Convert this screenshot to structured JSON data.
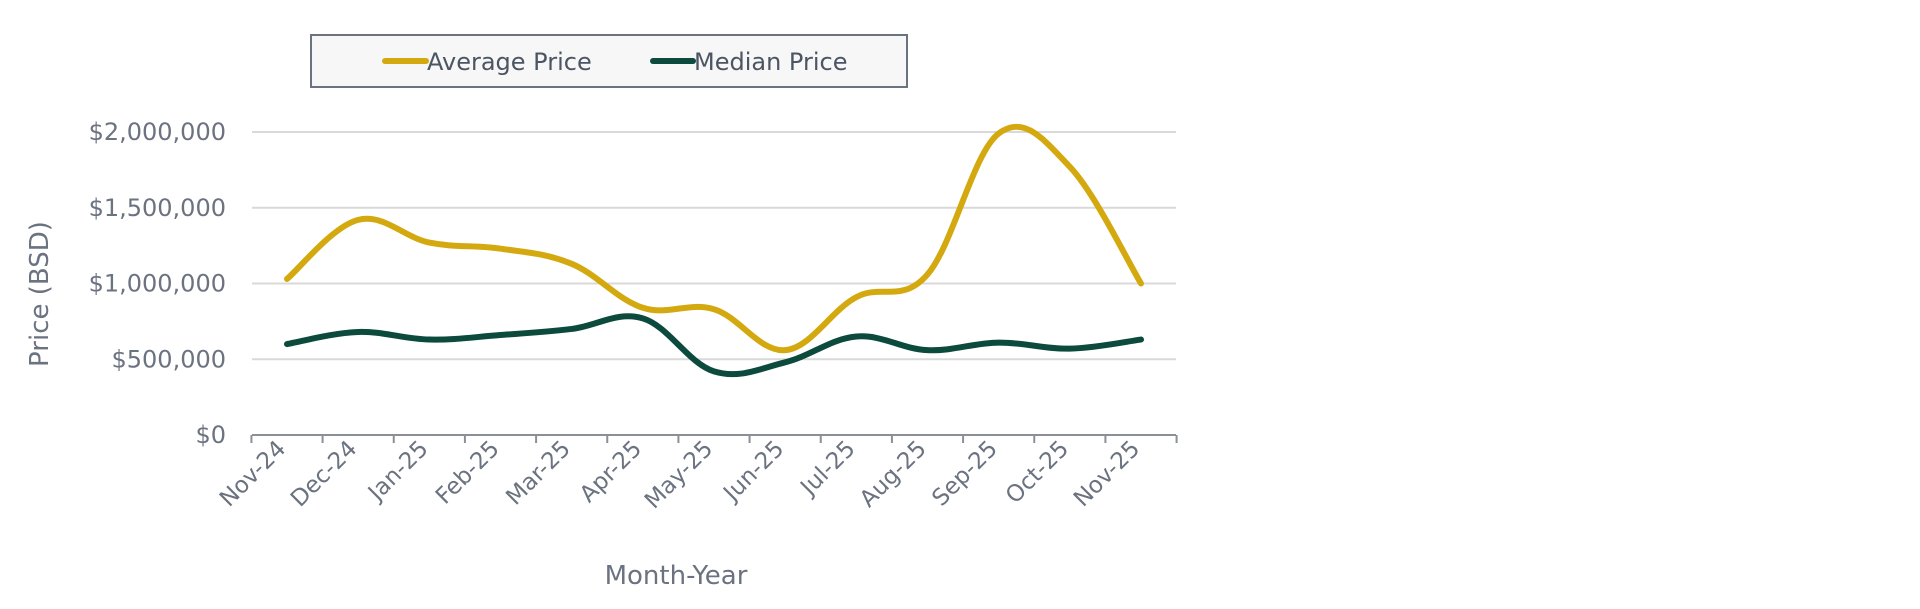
{
  "chart_data": {
    "type": "line",
    "title": "",
    "xlabel": "Month-Year",
    "ylabel": "Price (BSD)",
    "categories": [
      "Nov-24",
      "Dec-24",
      "Jan-25",
      "Feb-25",
      "Mar-25",
      "Apr-25",
      "May-25",
      "Jun-25",
      "Jul-25",
      "Aug-25",
      "Sep-25",
      "Oct-25",
      "Nov-25"
    ],
    "ylim": [
      0,
      2000000
    ],
    "yticks": [
      0,
      500000,
      1000000,
      1500000,
      2000000
    ],
    "ytick_labels": [
      "$0",
      "$500,000",
      "$1,000,000",
      "$1,500,000",
      "$2,000,000"
    ],
    "grid": true,
    "legend_position": "top",
    "series": [
      {
        "name": "Average Price",
        "color": "#d4a90f",
        "values": [
          1030000,
          1420000,
          1270000,
          1230000,
          1130000,
          840000,
          830000,
          560000,
          910000,
          1060000,
          1990000,
          1770000,
          1000000
        ]
      },
      {
        "name": "Median Price",
        "color": "#0b4a3c",
        "values": [
          600000,
          680000,
          630000,
          660000,
          700000,
          770000,
          420000,
          480000,
          650000,
          560000,
          610000,
          570000,
          630000
        ]
      }
    ]
  }
}
